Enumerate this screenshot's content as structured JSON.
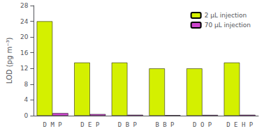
{
  "chart_data": {
    "type": "bar",
    "categories": [
      "D M P",
      "D E P",
      "D B P",
      "B B P",
      "D O P",
      "D E H P"
    ],
    "series": [
      {
        "name": "2 μL injection",
        "color": "#d4f000",
        "values": [
          24.0,
          13.5,
          13.5,
          12.0,
          12.0,
          13.5
        ]
      },
      {
        "name": "70 μL injection",
        "color": "#cc44cc",
        "values": [
          0.65,
          0.4,
          0.22,
          0.12,
          0.18,
          0.22
        ]
      }
    ],
    "ylabel": "LOD (pg m⁻³)",
    "ylim": [
      0,
      28
    ],
    "yticks": [
      0,
      4,
      8,
      12,
      16,
      20,
      24,
      28
    ],
    "grid": false,
    "legend": "upper right"
  }
}
